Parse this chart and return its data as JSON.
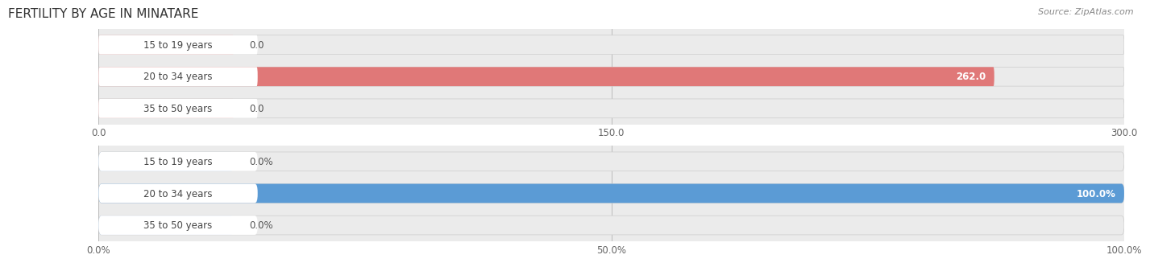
{
  "title": "FERTILITY BY AGE IN MINATARE",
  "source": "Source: ZipAtlas.com",
  "top_chart": {
    "categories": [
      "15 to 19 years",
      "20 to 34 years",
      "35 to 50 years"
    ],
    "values": [
      0.0,
      262.0,
      0.0
    ],
    "xlim": [
      0,
      300.0
    ],
    "xticks": [
      0.0,
      150.0,
      300.0
    ],
    "xtick_labels": [
      "0.0",
      "150.0",
      "300.0"
    ],
    "bar_color": "#E07878",
    "bar_bg_color": "#FFFFFF",
    "bar_outer_bg": "#EBEBEB",
    "small_bar_color": "#F0AAAA",
    "label_color_inside": "#FFFFFF",
    "label_color_outside": "#555555"
  },
  "bottom_chart": {
    "categories": [
      "15 to 19 years",
      "20 to 34 years",
      "35 to 50 years"
    ],
    "values": [
      0.0,
      100.0,
      0.0
    ],
    "xlim": [
      0,
      100.0
    ],
    "xticks": [
      0.0,
      50.0,
      100.0
    ],
    "xtick_labels": [
      "0.0%",
      "50.0%",
      "100.0%"
    ],
    "bar_color": "#5B9BD5",
    "bar_bg_color": "#FFFFFF",
    "bar_outer_bg": "#EBEBEB",
    "small_bar_color": "#AACCEE",
    "label_color_inside": "#FFFFFF",
    "label_color_outside": "#555555"
  },
  "fig_bg_color": "#FFFFFF",
  "axes_bg_color": "#EBEBEB",
  "bar_height": 0.6,
  "label_fontsize": 8.5,
  "tick_fontsize": 8.5,
  "title_fontsize": 11,
  "source_fontsize": 8,
  "category_fontsize": 8.5
}
